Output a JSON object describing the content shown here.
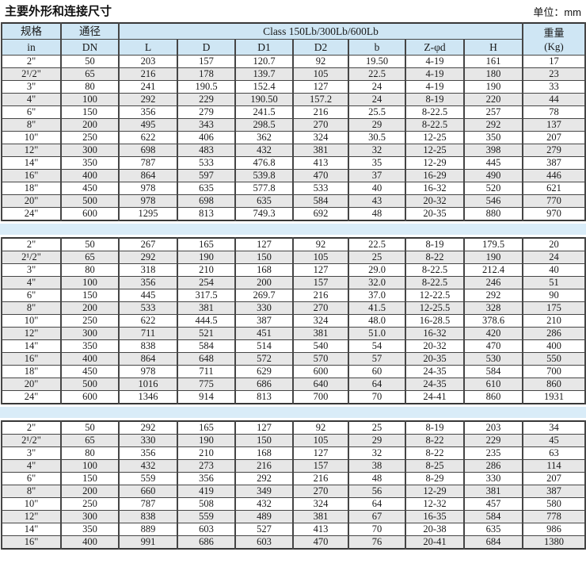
{
  "page": {
    "title": "主要外形和连接尺寸",
    "unit": "单位：mm"
  },
  "table": {
    "header": {
      "spec": "规格",
      "spec_sub": "in",
      "dn": "通径",
      "dn_sub": "DN",
      "class_label": "Class 150Lb/300Lb/600Lb",
      "dims": [
        "L",
        "D",
        "D1",
        "D2",
        "b",
        "Z-φd",
        "H"
      ],
      "weight": "重量",
      "weight_sub": "(Kg)"
    },
    "col_keys": [
      "spec",
      "dn",
      "l",
      "d",
      "d1",
      "d2",
      "b",
      "z-phi-d",
      "h",
      "weight-kg"
    ],
    "sections": [
      {
        "rows": [
          [
            "2\"",
            "50",
            "203",
            "157",
            "120.7",
            "92",
            "19.50",
            "4-19",
            "161",
            "17"
          ],
          [
            "2¹/2\"",
            "65",
            "216",
            "178",
            "139.7",
            "105",
            "22.5",
            "4-19",
            "180",
            "23"
          ],
          [
            "3\"",
            "80",
            "241",
            "190.5",
            "152.4",
            "127",
            "24",
            "4-19",
            "190",
            "33"
          ],
          [
            "4\"",
            "100",
            "292",
            "229",
            "190.50",
            "157.2",
            "24",
            "8-19",
            "220",
            "44"
          ],
          [
            "6\"",
            "150",
            "356",
            "279",
            "241.5",
            "216",
            "25.5",
            "8-22.5",
            "257",
            "78"
          ],
          [
            "8\"",
            "200",
            "495",
            "343",
            "298.5",
            "270",
            "29",
            "8-22.5",
            "292",
            "137"
          ],
          [
            "10\"",
            "250",
            "622",
            "406",
            "362",
            "324",
            "30.5",
            "12-25",
            "350",
            "207"
          ],
          [
            "12\"",
            "300",
            "698",
            "483",
            "432",
            "381",
            "32",
            "12-25",
            "398",
            "279"
          ],
          [
            "14\"",
            "350",
            "787",
            "533",
            "476.8",
            "413",
            "35",
            "12-29",
            "445",
            "387"
          ],
          [
            "16\"",
            "400",
            "864",
            "597",
            "539.8",
            "470",
            "37",
            "16-29",
            "490",
            "446"
          ],
          [
            "18\"",
            "450",
            "978",
            "635",
            "577.8",
            "533",
            "40",
            "16-32",
            "520",
            "621"
          ],
          [
            "20\"",
            "500",
            "978",
            "698",
            "635",
            "584",
            "43",
            "20-32",
            "546",
            "770"
          ],
          [
            "24\"",
            "600",
            "1295",
            "813",
            "749.3",
            "692",
            "48",
            "20-35",
            "880",
            "970"
          ]
        ]
      },
      {
        "rows": [
          [
            "2\"",
            "50",
            "267",
            "165",
            "127",
            "92",
            "22.5",
            "8-19",
            "179.5",
            "20"
          ],
          [
            "2¹/2\"",
            "65",
            "292",
            "190",
            "150",
            "105",
            "25",
            "8-22",
            "190",
            "24"
          ],
          [
            "3\"",
            "80",
            "318",
            "210",
            "168",
            "127",
            "29.0",
            "8-22.5",
            "212.4",
            "40"
          ],
          [
            "4\"",
            "100",
            "356",
            "254",
            "200",
            "157",
            "32.0",
            "8-22.5",
            "246",
            "51"
          ],
          [
            "6\"",
            "150",
            "445",
            "317.5",
            "269.7",
            "216",
            "37.0",
            "12-22.5",
            "292",
            "90"
          ],
          [
            "8\"",
            "200",
            "533",
            "381",
            "330",
            "270",
            "41.5",
            "12-25.5",
            "328",
            "175"
          ],
          [
            "10\"",
            "250",
            "622",
            "444.5",
            "387",
            "324",
            "48.0",
            "16-28.5",
            "378.6",
            "210"
          ],
          [
            "12\"",
            "300",
            "711",
            "521",
            "451",
            "381",
            "51.0",
            "16-32",
            "420",
            "286"
          ],
          [
            "14\"",
            "350",
            "838",
            "584",
            "514",
            "540",
            "54",
            "20-32",
            "470",
            "400"
          ],
          [
            "16\"",
            "400",
            "864",
            "648",
            "572",
            "570",
            "57",
            "20-35",
            "530",
            "550"
          ],
          [
            "18\"",
            "450",
            "978",
            "711",
            "629",
            "600",
            "60",
            "24-35",
            "584",
            "700"
          ],
          [
            "20\"",
            "500",
            "1016",
            "775",
            "686",
            "640",
            "64",
            "24-35",
            "610",
            "860"
          ],
          [
            "24\"",
            "600",
            "1346",
            "914",
            "813",
            "700",
            "70",
            "24-41",
            "860",
            "1931"
          ]
        ]
      },
      {
        "rows": [
          [
            "2\"",
            "50",
            "292",
            "165",
            "127",
            "92",
            "25",
            "8-19",
            "203",
            "34"
          ],
          [
            "2¹/2\"",
            "65",
            "330",
            "190",
            "150",
            "105",
            "29",
            "8-22",
            "229",
            "45"
          ],
          [
            "3\"",
            "80",
            "356",
            "210",
            "168",
            "127",
            "32",
            "8-22",
            "235",
            "63"
          ],
          [
            "4\"",
            "100",
            "432",
            "273",
            "216",
            "157",
            "38",
            "8-25",
            "286",
            "114"
          ],
          [
            "6\"",
            "150",
            "559",
            "356",
            "292",
            "216",
            "48",
            "8-29",
            "330",
            "207"
          ],
          [
            "8\"",
            "200",
            "660",
            "419",
            "349",
            "270",
            "56",
            "12-29",
            "381",
            "387"
          ],
          [
            "10\"",
            "250",
            "787",
            "508",
            "432",
            "324",
            "64",
            "12-32",
            "457",
            "580"
          ],
          [
            "12\"",
            "300",
            "838",
            "559",
            "489",
            "381",
            "67",
            "16-35",
            "584",
            "778"
          ],
          [
            "14\"",
            "350",
            "889",
            "603",
            "527",
            "413",
            "70",
            "20-38",
            "635",
            "986"
          ],
          [
            "16\"",
            "400",
            "991",
            "686",
            "603",
            "470",
            "76",
            "20-41",
            "684",
            "1380"
          ]
        ]
      }
    ]
  }
}
